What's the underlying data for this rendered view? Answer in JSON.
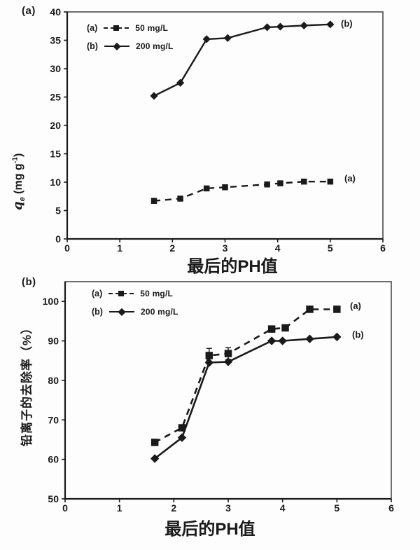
{
  "page": {
    "bg": "#fdfdfd",
    "ink": "#1a1a1a",
    "frame": "#4a4a4a"
  },
  "chart_data": [
    {
      "id": "a",
      "type": "line",
      "panel_label": "(a)",
      "x_axis": {
        "label": "最后的PH值",
        "min": 0,
        "max": 6,
        "ticks": [
          0,
          1,
          2,
          3,
          4,
          5,
          6
        ]
      },
      "y_axis": {
        "label": "qe (mg g-1)",
        "label_parts": {
          "main": "q",
          "sub": "e",
          "rest": " (mg g",
          "sup": "-1",
          "close": ")"
        },
        "min": 0,
        "max": 40,
        "ticks": [
          0,
          5,
          10,
          15,
          20,
          25,
          30,
          35,
          40
        ]
      },
      "grid": false,
      "legend_position": "top-left-inside",
      "series": [
        {
          "key": "(a)",
          "name": "50 mg/L",
          "marker": "square",
          "line": "dashed",
          "end_label": "(a)",
          "x": [
            1.65,
            2.15,
            2.65,
            3.0,
            3.8,
            4.05,
            4.5,
            5.0
          ],
          "y": [
            6.7,
            7.1,
            8.9,
            9.1,
            9.6,
            9.8,
            10.1,
            10.1
          ]
        },
        {
          "key": "(b)",
          "name": "200 mg/L",
          "marker": "diamond",
          "line": "solid",
          "end_label": "(b)",
          "x": [
            1.65,
            2.15,
            2.65,
            3.05,
            3.8,
            4.05,
            4.5,
            5.0
          ],
          "y": [
            25.2,
            27.5,
            35.2,
            35.4,
            37.3,
            37.4,
            37.6,
            37.8
          ]
        }
      ]
    },
    {
      "id": "b",
      "type": "line",
      "panel_label": "(b)",
      "x_axis": {
        "label": "最后的PH值",
        "min": 0,
        "max": 6,
        "ticks": [
          0,
          1,
          2,
          3,
          4,
          5,
          6
        ]
      },
      "y_axis": {
        "label": "铅离子的去除率（%）",
        "min": 50,
        "max": 105,
        "ticks": [
          50,
          60,
          70,
          80,
          90,
          100
        ]
      },
      "grid": false,
      "legend_position": "top-left-inside",
      "series": [
        {
          "key": "(a)",
          "name": "50 mg/L",
          "marker": "square",
          "line": "dashed",
          "end_label": "(a)",
          "x": [
            1.65,
            2.15,
            2.65,
            3.0,
            3.8,
            4.05,
            4.5,
            5.0
          ],
          "y": [
            64.3,
            68.0,
            86.3,
            86.8,
            93.0,
            93.3,
            98.0,
            98.0
          ],
          "error": [
            0,
            0,
            1.8,
            1.5,
            0,
            0,
            0,
            0
          ]
        },
        {
          "key": "(b)",
          "name": "200 mg/L",
          "marker": "diamond",
          "line": "solid",
          "end_label": "(b)",
          "x": [
            1.65,
            2.15,
            2.65,
            3.0,
            3.8,
            4.0,
            4.5,
            5.0
          ],
          "y": [
            60.2,
            65.5,
            84.5,
            84.7,
            90.0,
            90.0,
            90.5,
            91.0
          ]
        }
      ]
    }
  ]
}
